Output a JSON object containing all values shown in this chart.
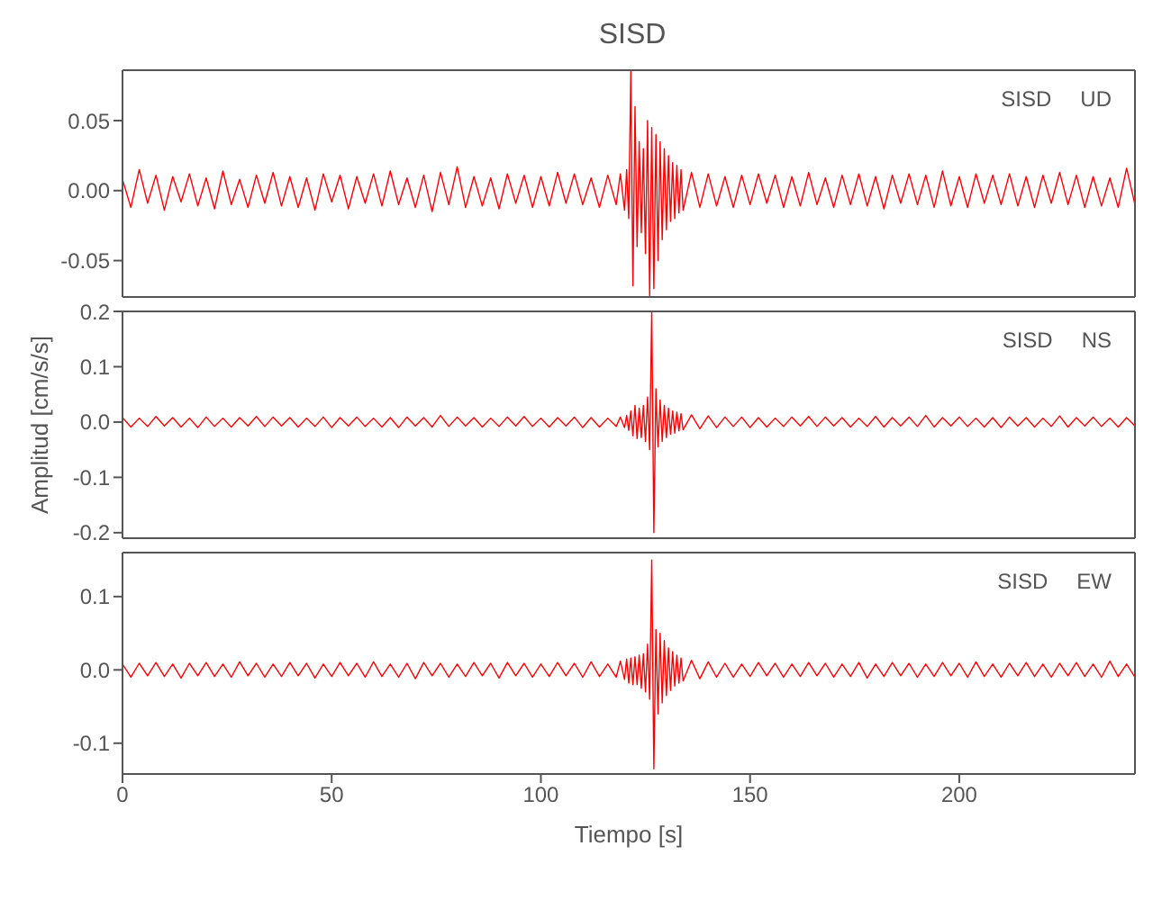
{
  "chart_data": [
    {
      "type": "line",
      "title": "SISD",
      "annotations": [
        "SISD",
        "UD"
      ],
      "tick_labels": "y",
      "grid": false,
      "xlim": [
        0,
        242
      ],
      "xticks": [
        0,
        50,
        100,
        150,
        200
      ],
      "ylim": [
        -0.076,
        0.086
      ],
      "yticks": [
        {
          "value": 0.05,
          "label": "0.05"
        },
        {
          "value": 0,
          "label": "0.00"
        },
        {
          "value": -0.05,
          "label": "-0.05"
        }
      ],
      "x": [
        0,
        2,
        4,
        6,
        8,
        10,
        12,
        14,
        16,
        18,
        20,
        22,
        24,
        26,
        28,
        30,
        32,
        34,
        36,
        38,
        40,
        42,
        44,
        46,
        48,
        50,
        52,
        54,
        56,
        58,
        60,
        62,
        64,
        66,
        68,
        70,
        72,
        74,
        76,
        78,
        80,
        82,
        84,
        86,
        88,
        90,
        92,
        94,
        96,
        98,
        100,
        102,
        104,
        106,
        108,
        110,
        112,
        114,
        116,
        118,
        119,
        120,
        120.5,
        121,
        121.5,
        122,
        122.5,
        123,
        123.5,
        124,
        124.5,
        125,
        125.5,
        126,
        126.5,
        127,
        127.5,
        128,
        128.5,
        129,
        129.5,
        130,
        130.5,
        131,
        131.5,
        132,
        132.5,
        133,
        133.5,
        134,
        136,
        138,
        140,
        142,
        144,
        146,
        148,
        150,
        152,
        154,
        156,
        158,
        160,
        162,
        164,
        166,
        168,
        170,
        172,
        174,
        176,
        178,
        180,
        182,
        184,
        186,
        188,
        190,
        192,
        194,
        196,
        198,
        200,
        202,
        204,
        206,
        208,
        210,
        212,
        214,
        216,
        218,
        220,
        222,
        224,
        226,
        228,
        230,
        232,
        234,
        236,
        238,
        240,
        242
      ],
      "series": [
        {
          "color": "#ff0000",
          "values": [
            0.008,
            -0.012,
            0.015,
            -0.009,
            0.011,
            -0.014,
            0.01,
            -0.008,
            0.012,
            -0.011,
            0.009,
            -0.013,
            0.014,
            -0.01,
            0.008,
            -0.012,
            0.011,
            -0.009,
            0.013,
            -0.011,
            0.01,
            -0.012,
            0.009,
            -0.014,
            0.012,
            -0.008,
            0.011,
            -0.013,
            0.01,
            -0.009,
            0.012,
            -0.011,
            0.014,
            -0.01,
            0.009,
            -0.012,
            0.011,
            -0.015,
            0.013,
            -0.01,
            0.017,
            -0.012,
            0.01,
            -0.011,
            0.009,
            -0.013,
            0.012,
            -0.009,
            0.011,
            -0.012,
            0.01,
            -0.011,
            0.013,
            -0.009,
            0.012,
            -0.01,
            0.009,
            -0.012,
            0.011,
            -0.01,
            0.012,
            -0.014,
            0.015,
            -0.02,
            0.085,
            -0.068,
            0.06,
            -0.04,
            0.035,
            -0.03,
            0.03,
            -0.045,
            0.05,
            -0.075,
            0.045,
            -0.07,
            0.04,
            -0.05,
            0.035,
            -0.035,
            0.03,
            -0.028,
            0.025,
            -0.022,
            0.02,
            -0.02,
            0.018,
            -0.016,
            0.015,
            -0.014,
            0.013,
            -0.012,
            0.012,
            -0.011,
            0.01,
            -0.012,
            0.011,
            -0.01,
            0.012,
            -0.009,
            0.011,
            -0.012,
            0.01,
            -0.011,
            0.013,
            -0.01,
            0.009,
            -0.012,
            0.011,
            -0.01,
            0.012,
            -0.011,
            0.01,
            -0.013,
            0.011,
            -0.009,
            0.012,
            -0.01,
            0.011,
            -0.012,
            0.014,
            -0.011,
            0.01,
            -0.012,
            0.012,
            -0.009,
            0.011,
            -0.01,
            0.012,
            -0.011,
            0.01,
            -0.012,
            0.011,
            -0.009,
            0.013,
            -0.01,
            0.011,
            -0.012,
            0.01,
            -0.011,
            0.009,
            -0.012,
            0.016,
            -0.01
          ]
        }
      ]
    },
    {
      "type": "line",
      "ylabel": "Amplitud  [cm/s/s]",
      "annotations": [
        "SISD",
        "NS"
      ],
      "tick_labels": "y",
      "grid": false,
      "xlim": [
        0,
        242
      ],
      "xticks": [
        0,
        50,
        100,
        150,
        200
      ],
      "ylim": [
        -0.21,
        0.2
      ],
      "yticks": [
        {
          "value": 0.2,
          "label": "0.2"
        },
        {
          "value": 0.1,
          "label": "0.1"
        },
        {
          "value": 0,
          "label": "0.0"
        },
        {
          "value": -0.1,
          "label": "-0.1"
        },
        {
          "value": -0.2,
          "label": "-0.2"
        }
      ],
      "x": [
        0,
        2,
        4,
        6,
        8,
        10,
        12,
        14,
        16,
        18,
        20,
        22,
        24,
        26,
        28,
        30,
        32,
        34,
        36,
        38,
        40,
        42,
        44,
        46,
        48,
        50,
        52,
        54,
        56,
        58,
        60,
        62,
        64,
        66,
        68,
        70,
        72,
        74,
        76,
        78,
        80,
        82,
        84,
        86,
        88,
        90,
        92,
        94,
        96,
        98,
        100,
        102,
        104,
        106,
        108,
        110,
        112,
        114,
        116,
        118,
        119,
        120,
        120.5,
        121,
        121.5,
        122,
        122.5,
        123,
        123.5,
        124,
        124.5,
        125,
        125.5,
        126,
        126.5,
        127,
        127.5,
        128,
        128.5,
        129,
        129.5,
        130,
        130.5,
        131,
        131.5,
        132,
        132.5,
        133,
        133.5,
        134,
        136,
        138,
        140,
        142,
        144,
        146,
        148,
        150,
        152,
        154,
        156,
        158,
        160,
        162,
        164,
        166,
        168,
        170,
        172,
        174,
        176,
        178,
        180,
        182,
        184,
        186,
        188,
        190,
        192,
        194,
        196,
        198,
        200,
        202,
        204,
        206,
        208,
        210,
        212,
        214,
        216,
        218,
        220,
        222,
        224,
        226,
        228,
        230,
        232,
        234,
        236,
        238,
        240,
        242
      ],
      "series": [
        {
          "color": "#ff0000",
          "values": [
            0.008,
            -0.009,
            0.007,
            -0.008,
            0.01,
            -0.007,
            0.008,
            -0.009,
            0.007,
            -0.01,
            0.009,
            -0.008,
            0.007,
            -0.009,
            0.008,
            -0.007,
            0.01,
            -0.008,
            0.009,
            -0.007,
            0.008,
            -0.009,
            0.007,
            -0.008,
            0.009,
            -0.01,
            0.008,
            -0.007,
            0.009,
            -0.008,
            0.007,
            -0.009,
            0.008,
            -0.01,
            0.009,
            -0.007,
            0.008,
            -0.009,
            0.012,
            -0.008,
            0.009,
            -0.007,
            0.008,
            -0.009,
            0.007,
            -0.008,
            0.009,
            -0.007,
            0.01,
            -0.008,
            0.007,
            -0.009,
            0.008,
            -0.007,
            0.009,
            -0.01,
            0.008,
            -0.009,
            0.007,
            -0.008,
            0.009,
            -0.01,
            0.012,
            -0.015,
            0.02,
            -0.025,
            0.03,
            -0.03,
            0.025,
            -0.028,
            0.03,
            -0.035,
            0.045,
            -0.05,
            0.2,
            -0.2,
            0.06,
            -0.045,
            0.04,
            -0.035,
            0.03,
            -0.028,
            0.025,
            -0.022,
            0.02,
            -0.02,
            0.018,
            -0.016,
            0.015,
            -0.014,
            0.013,
            -0.012,
            0.011,
            -0.01,
            0.009,
            -0.008,
            0.009,
            -0.01,
            0.008,
            -0.009,
            0.007,
            -0.008,
            0.009,
            -0.007,
            0.01,
            -0.008,
            0.009,
            -0.007,
            0.008,
            -0.009,
            0.007,
            -0.008,
            0.01,
            -0.009,
            0.008,
            -0.007,
            0.009,
            -0.008,
            0.012,
            -0.009,
            0.008,
            -0.007,
            0.009,
            -0.008,
            0.007,
            -0.009,
            0.008,
            -0.01,
            0.009,
            -0.007,
            0.008,
            -0.009,
            0.007,
            -0.008,
            0.011,
            -0.009,
            0.008,
            -0.007,
            0.009,
            -0.008,
            0.007,
            -0.009,
            0.008,
            -0.007
          ]
        }
      ]
    },
    {
      "type": "line",
      "xlabel": "Tiempo  [s]",
      "annotations": [
        "SISD",
        "EW"
      ],
      "grid": false,
      "xlim": [
        0,
        242
      ],
      "xticks": [
        0,
        50,
        100,
        150,
        200
      ],
      "ylim": [
        -0.142,
        0.16
      ],
      "yticks": [
        {
          "value": 0.1,
          "label": "0.1"
        },
        {
          "value": 0,
          "label": "0.0"
        },
        {
          "value": -0.1,
          "label": "-0.1"
        }
      ],
      "x": [
        0,
        2,
        4,
        6,
        8,
        10,
        12,
        14,
        16,
        18,
        20,
        22,
        24,
        26,
        28,
        30,
        32,
        34,
        36,
        38,
        40,
        42,
        44,
        46,
        48,
        50,
        52,
        54,
        56,
        58,
        60,
        62,
        64,
        66,
        68,
        70,
        72,
        74,
        76,
        78,
        80,
        82,
        84,
        86,
        88,
        90,
        92,
        94,
        96,
        98,
        100,
        102,
        104,
        106,
        108,
        110,
        112,
        114,
        116,
        118,
        119,
        120,
        120.5,
        121,
        121.5,
        122,
        122.5,
        123,
        123.5,
        124,
        124.5,
        125,
        125.5,
        126,
        126.5,
        127,
        127.5,
        128,
        128.5,
        129,
        129.5,
        130,
        130.5,
        131,
        131.5,
        132,
        132.5,
        133,
        133.5,
        134,
        136,
        138,
        140,
        142,
        144,
        146,
        148,
        150,
        152,
        154,
        156,
        158,
        160,
        162,
        164,
        166,
        168,
        170,
        172,
        174,
        176,
        178,
        180,
        182,
        184,
        186,
        188,
        190,
        192,
        194,
        196,
        198,
        200,
        202,
        204,
        206,
        208,
        210,
        212,
        214,
        216,
        218,
        220,
        222,
        224,
        226,
        228,
        230,
        232,
        234,
        236,
        238,
        240,
        242
      ],
      "series": [
        {
          "color": "#ff0000",
          "values": [
            0.008,
            -0.01,
            0.009,
            -0.008,
            0.01,
            -0.009,
            0.008,
            -0.011,
            0.009,
            -0.008,
            0.01,
            -0.009,
            0.008,
            -0.01,
            0.011,
            -0.008,
            0.009,
            -0.01,
            0.008,
            -0.009,
            0.01,
            -0.008,
            0.009,
            -0.011,
            0.008,
            -0.009,
            0.01,
            -0.008,
            0.009,
            -0.01,
            0.011,
            -0.009,
            0.008,
            -0.01,
            0.009,
            -0.012,
            0.01,
            -0.008,
            0.009,
            -0.01,
            0.008,
            -0.009,
            0.01,
            -0.008,
            0.009,
            -0.011,
            0.01,
            -0.008,
            0.009,
            -0.01,
            0.008,
            -0.009,
            0.01,
            -0.008,
            0.009,
            -0.01,
            0.011,
            -0.009,
            0.008,
            -0.01,
            0.012,
            -0.013,
            0.015,
            -0.018,
            0.016,
            -0.02,
            0.018,
            -0.02,
            0.02,
            -0.025,
            0.022,
            -0.03,
            0.035,
            -0.04,
            0.15,
            -0.135,
            0.055,
            -0.06,
            0.05,
            -0.045,
            0.04,
            -0.035,
            0.03,
            -0.028,
            0.025,
            -0.022,
            0.02,
            -0.018,
            0.016,
            -0.015,
            0.013,
            -0.012,
            0.011,
            -0.01,
            0.009,
            -0.01,
            0.008,
            -0.009,
            0.01,
            -0.008,
            0.009,
            -0.01,
            0.008,
            -0.009,
            0.01,
            -0.008,
            0.009,
            -0.01,
            0.008,
            -0.009,
            0.01,
            -0.011,
            0.008,
            -0.009,
            0.01,
            -0.008,
            0.009,
            -0.01,
            0.008,
            -0.009,
            0.01,
            -0.008,
            0.009,
            -0.01,
            0.011,
            -0.009,
            0.008,
            -0.01,
            0.009,
            -0.008,
            0.01,
            -0.009,
            0.008,
            -0.01,
            0.009,
            -0.008,
            0.01,
            -0.009,
            0.008,
            -0.01,
            0.012,
            -0.009,
            0.008,
            -0.01
          ]
        }
      ]
    }
  ]
}
